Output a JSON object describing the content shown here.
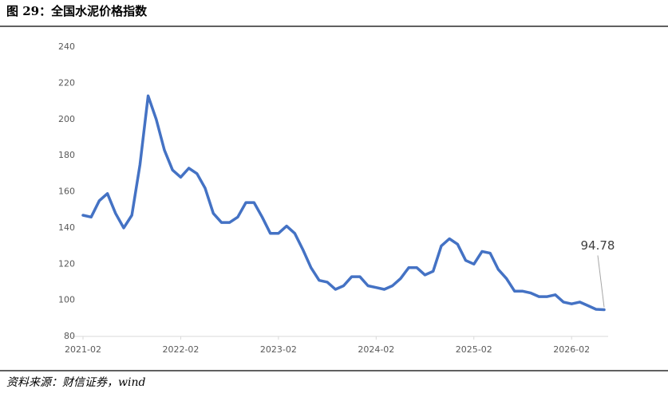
{
  "title": "图 29：全国水泥价格指数",
  "source": "资料来源：财信证券，wind",
  "chart_data": {
    "type": "line",
    "color": "#4472c4",
    "grid": false,
    "x": [
      "2021-02",
      "2021-03",
      "2021-04",
      "2021-05",
      "2021-06",
      "2021-07",
      "2021-08",
      "2021-09",
      "2021-10",
      "2021-11",
      "2021-12",
      "2022-01",
      "2022-02",
      "2022-03",
      "2022-04",
      "2022-05",
      "2022-06",
      "2022-07",
      "2022-08",
      "2022-09",
      "2022-10",
      "2022-11",
      "2022-12",
      "2023-01",
      "2023-02",
      "2023-03",
      "2023-04",
      "2023-05",
      "2023-06",
      "2023-07",
      "2023-08",
      "2023-09",
      "2023-10",
      "2023-11",
      "2023-12",
      "2024-01",
      "2024-02",
      "2024-03",
      "2024-04",
      "2024-05",
      "2024-06",
      "2024-07",
      "2024-08",
      "2024-09",
      "2024-10",
      "2024-11",
      "2024-12",
      "2025-01",
      "2025-02",
      "2025-03",
      "2025-04",
      "2025-05",
      "2025-06",
      "2025-07",
      "2025-08",
      "2025-09",
      "2025-10",
      "2025-11",
      "2025-12",
      "2026-01",
      "2026-02",
      "2026-03",
      "2026-04",
      "2026-05",
      "2026-06"
    ],
    "values": [
      147,
      146,
      155,
      159,
      148,
      140,
      147,
      175,
      213,
      200,
      183,
      172,
      168,
      173,
      170,
      162,
      148,
      143,
      143,
      146,
      154,
      154,
      146,
      137,
      137,
      141,
      137,
      128,
      118,
      111,
      110,
      106,
      108,
      113,
      113,
      108,
      107,
      106,
      108,
      112,
      118,
      118,
      114,
      116,
      130,
      134,
      131,
      122,
      120,
      127,
      126,
      117,
      112,
      105,
      105,
      104,
      102,
      102,
      103,
      99,
      98,
      99,
      97,
      95,
      94.78
    ],
    "ylim": [
      80,
      240
    ],
    "yticks": [
      80,
      100,
      120,
      140,
      160,
      180,
      200,
      220,
      240
    ],
    "xticks": [
      "2021-02",
      "2022-02",
      "2023-02",
      "2024-02",
      "2025-02",
      "2026-02"
    ]
  }
}
